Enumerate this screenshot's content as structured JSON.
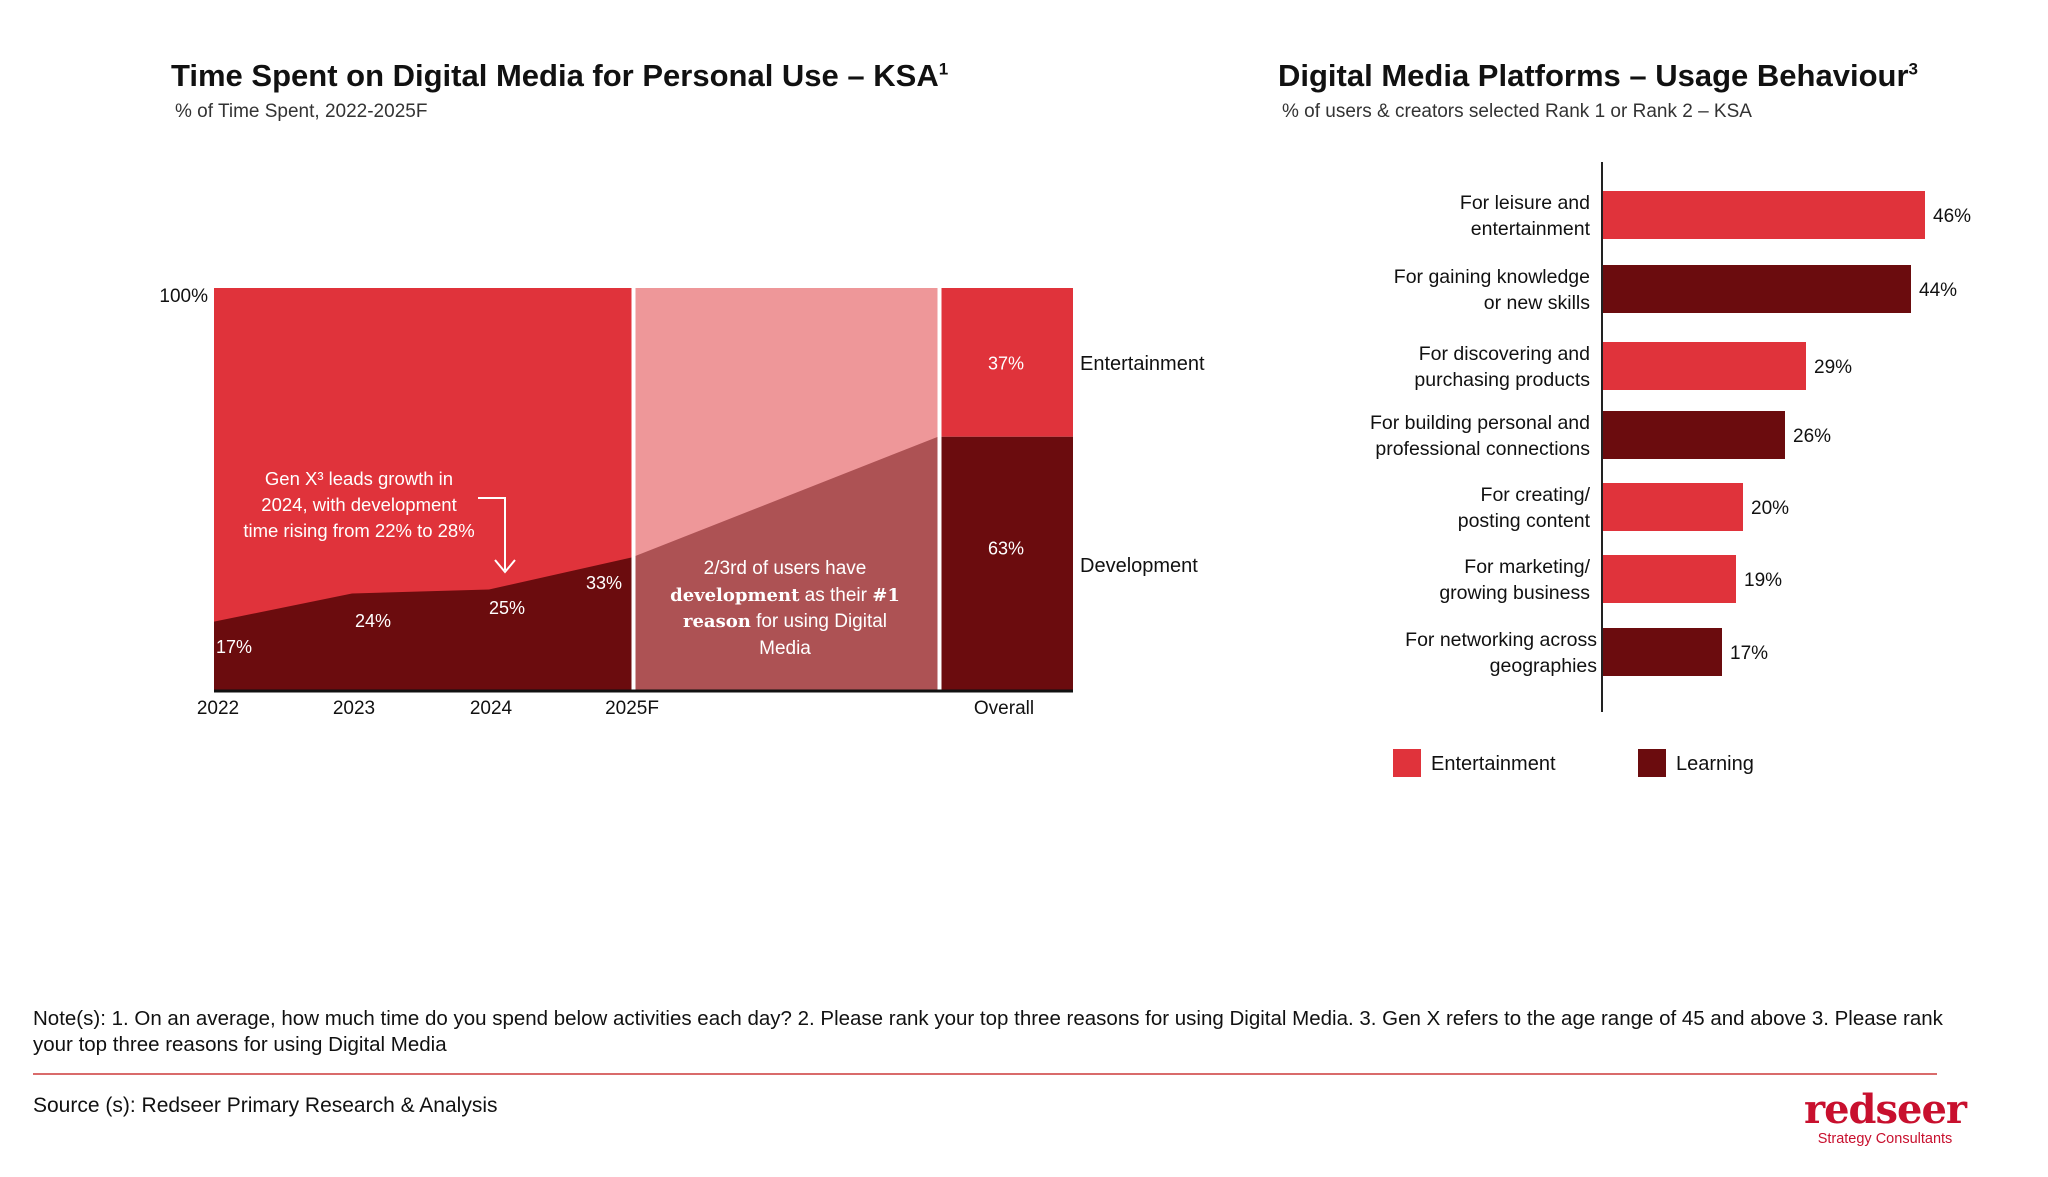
{
  "colors": {
    "entertainment": "#e0333b",
    "learning": "#6b0c0e",
    "forecast_light": "#ee9799",
    "forecast_dark": "#ad5254"
  },
  "left": {
    "title": "Time Spent on Digital Media for Personal Use – KSA",
    "title_sup": "1",
    "subtitle": "% of Time Spent, 2022-2025F",
    "callout_gen_x": [
      "Gen X³ leads growth in",
      "2024, with development",
      "time rising from 22% to 28%"
    ],
    "callout_forecast_html": "2/3rd of users have <b>development</b> as their <b>#1 reason</b> for using Digital Media"
  },
  "right": {
    "title": "Digital Media Platforms – Usage Behaviour",
    "title_sup": "3",
    "subtitle": "% of users & creators selected Rank 1 or Rank 2 – KSA"
  },
  "chart_data": [
    {
      "type": "area",
      "title": "Time Spent on Digital Media for Personal Use – KSA",
      "y_unit": "%",
      "ylim": [
        0,
        100
      ],
      "y_tick_label": "100%",
      "categories": [
        "2022",
        "2023",
        "2024",
        "2025F"
      ],
      "development_labels": [
        "17%",
        "24%",
        "25%",
        "33%"
      ],
      "series": [
        {
          "name": "Development",
          "values": [
            17,
            24,
            25,
            33
          ]
        },
        {
          "name": "Entertainment",
          "values": [
            83,
            76,
            75,
            67
          ]
        }
      ],
      "overall": {
        "label": "Overall",
        "segments": [
          {
            "name": "Entertainment",
            "value": 37,
            "label": "37%"
          },
          {
            "name": "Development",
            "value": 63,
            "label": "63%"
          }
        ]
      },
      "series_labels": [
        "Entertainment",
        "Development"
      ]
    },
    {
      "type": "bar",
      "orientation": "horizontal",
      "title": "Digital Media Platforms – Usage Behaviour",
      "categories": [
        {
          "label": [
            "For leisure and",
            "entertainment"
          ],
          "value": 46,
          "value_label": "46%",
          "series": "Entertainment"
        },
        {
          "label": [
            "For gaining knowledge",
            "or new skills"
          ],
          "value": 44,
          "value_label": "44%",
          "series": "Learning"
        },
        {
          "label": [
            "For discovering and",
            "purchasing products"
          ],
          "value": 29,
          "value_label": "29%",
          "series": "Entertainment"
        },
        {
          "label": [
            "For building personal and",
            "professional connections"
          ],
          "value": 26,
          "value_label": "26%",
          "series": "Learning"
        },
        {
          "label": [
            "For creating/",
            "posting content"
          ],
          "value": 20,
          "value_label": "20%",
          "series": "Entertainment"
        },
        {
          "label": [
            "For marketing/",
            "growing business"
          ],
          "value": 19,
          "value_label": "19%",
          "series": "Entertainment"
        },
        {
          "label": [
            "For networking across",
            "geographies"
          ],
          "value": 17,
          "value_label": "17%",
          "series": "Learning"
        }
      ],
      "legend": [
        {
          "name": "Entertainment",
          "label": "Entertainment"
        },
        {
          "name": "Learning",
          "label": "Learning"
        }
      ]
    }
  ],
  "footer": {
    "note": "Note(s): 1. On an average, how much time do you spend below activities each day?  2. Please rank your top three reasons for using Digital Media. 3. Gen X refers to the age range of 45 and above 3. Please rank your top three reasons for using Digital Media",
    "source": "Source (s): Redseer Primary Research & Analysis",
    "logo_word": "redseer",
    "logo_tagline": "Strategy Consultants"
  }
}
